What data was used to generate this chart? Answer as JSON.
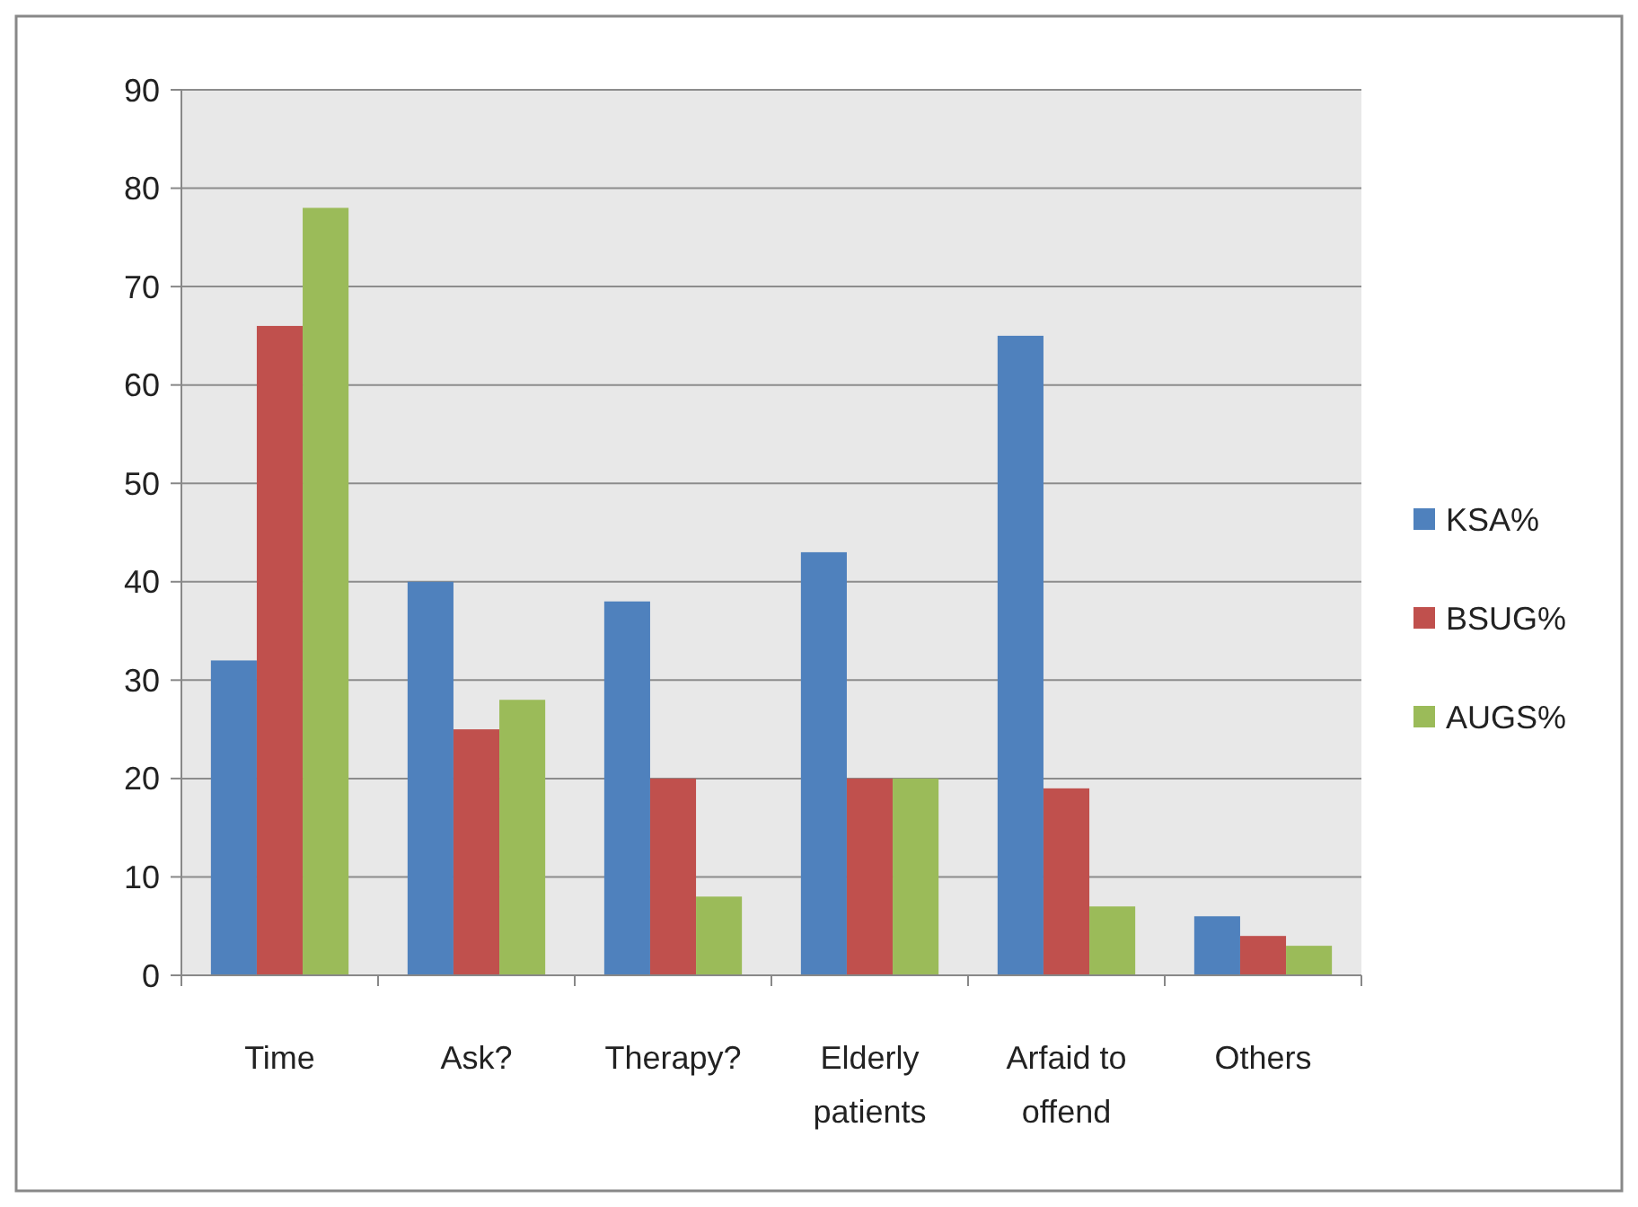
{
  "chart_data": {
    "type": "bar",
    "categories": [
      "Time",
      "Ask?",
      "Therapy?",
      "Elderly patients",
      "Arfaid to offend",
      "Others"
    ],
    "series": [
      {
        "name": "KSA%",
        "color": "#4f81bd",
        "values": [
          32,
          40,
          38,
          43,
          65,
          6
        ]
      },
      {
        "name": "BSUG%",
        "color": "#c0504d",
        "values": [
          66,
          25,
          20,
          20,
          19,
          4
        ]
      },
      {
        "name": "AUGS%",
        "color": "#9bbb59",
        "values": [
          78,
          28,
          8,
          20,
          7,
          3
        ]
      }
    ],
    "ylim": [
      0,
      90
    ],
    "yticks": [
      0,
      10,
      20,
      30,
      40,
      50,
      60,
      70,
      80,
      90
    ],
    "grid": "y",
    "legend": "right"
  }
}
